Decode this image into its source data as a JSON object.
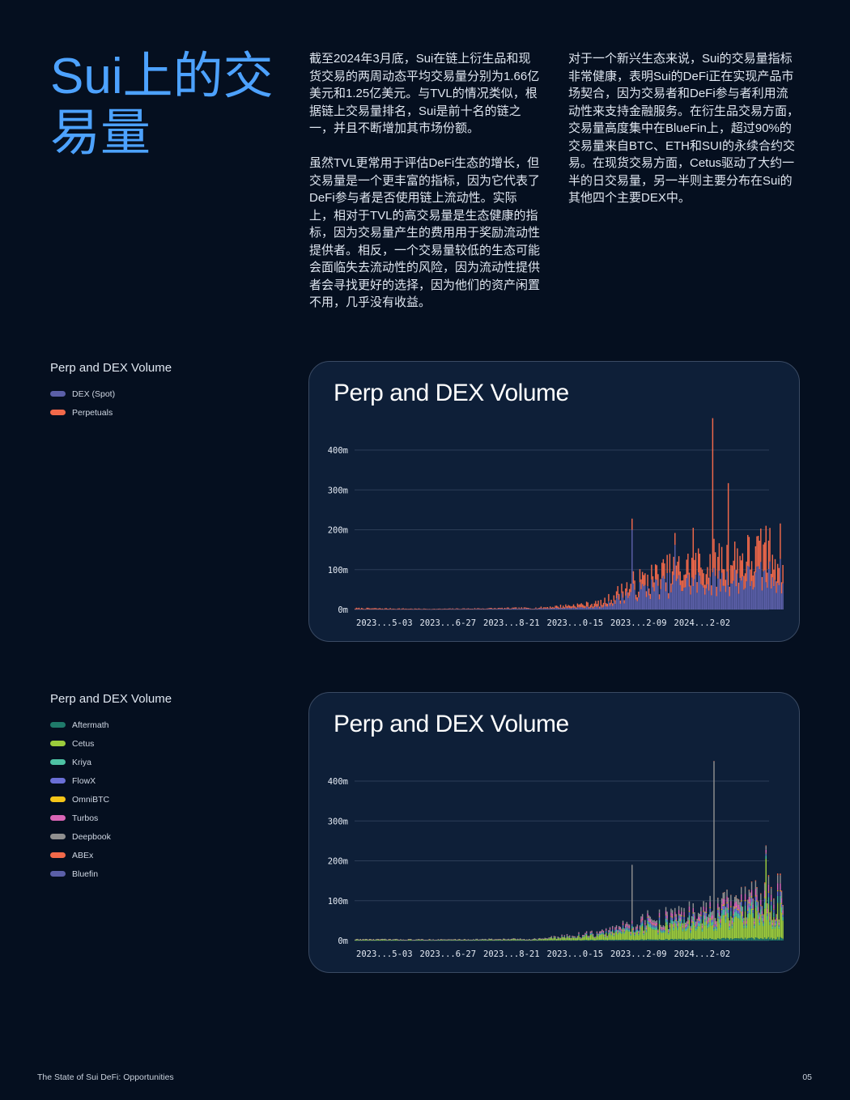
{
  "page": {
    "title": "Sui上的交易量",
    "paragraphs_col1": [
      "截至2024年3月底，Sui在链上衍生品和现货交易的两周动态平均交易量分别为1.66亿美元和1.25亿美元。与TVL的情况类似，根据链上交易量排名，Sui是前十名的链之一，并且不断增加其市场份额。",
      "虽然TVL更常用于评估DeFi生态的增长，但交易量是一个更丰富的指标，因为它代表了DeFi参与者是否使用链上流动性。实际上，相对于TVL的高交易量是生态健康的指标，因为交易量产生的费用用于奖励流动性提供者。相反，一个交易量较低的生态可能会面临失去流动性的风险，因为流动性提供者会寻找更好的选择，因为他们的资产闲置不用，几乎没有收益。"
    ],
    "paragraphs_col2": [
      "对于一个新兴生态来说，Sui的交易量指标非常健康，表明Sui的DeFi正在实现产品市场契合，因为交易者和DeFi参与者利用流动性来支持金融服务。在衍生品交易方面，交易量高度集中在BlueFin上，超过90%的交易量来自BTC、ETH和SUI的永续合约交易。在现货交易方面，Cetus驱动了大约一半的日交易量，另一半则主要分布在Sui的其他四个主要DEX中。"
    ],
    "footer_left": "The State of Sui DeFi: Opportunities",
    "page_number": "05"
  },
  "legends": [
    {
      "title": "Perp and DEX Volume",
      "items": [
        {
          "label": "DEX (Spot)",
          "color": "#5b5fa8"
        },
        {
          "label": "Perpetuals",
          "color": "#f2694a"
        }
      ]
    },
    {
      "title": "Perp and DEX Volume",
      "items": [
        {
          "label": "Aftermath",
          "color": "#1f7a6a"
        },
        {
          "label": "Cetus",
          "color": "#9ccc3c"
        },
        {
          "label": "Kriya",
          "color": "#4dc2a4"
        },
        {
          "label": "FlowX",
          "color": "#6a6fd6"
        },
        {
          "label": "OmniBTC",
          "color": "#f5c518"
        },
        {
          "label": "Turbos",
          "color": "#d965b6"
        },
        {
          "label": "Deepbook",
          "color": "#8f8f8f"
        },
        {
          "label": "ABEx",
          "color": "#f2694a"
        },
        {
          "label": "Bluefin",
          "color": "#5b5fa8"
        }
      ]
    }
  ],
  "chart_data": [
    {
      "type": "bar",
      "stacked": true,
      "title": "Perp and DEX Volume",
      "xlabel": "",
      "ylabel": "",
      "ylim": [
        0,
        480
      ],
      "yticks": [
        0,
        100,
        200,
        300,
        400
      ],
      "ytick_labels": [
        "0m",
        "100m",
        "200m",
        "300m",
        "400m"
      ],
      "xtick_labels": [
        "2023...5-03",
        "2023...6-27",
        "2023...8-21",
        "2023...0-15",
        "2023...2-09",
        "2024...2-02"
      ],
      "grid": true,
      "num_periods": 330,
      "spikes": [
        {
          "period": 213,
          "value": 200,
          "series": "DEX (Spot)"
        },
        {
          "period": 246,
          "value": 162,
          "series": "DEX (Spot)"
        },
        {
          "period": 260,
          "value": 205,
          "series": "Perpetuals"
        },
        {
          "period": 275,
          "value": 480,
          "series": "Perpetuals"
        },
        {
          "period": 287,
          "value": 317,
          "series": "Perpetuals"
        },
        {
          "period": 316,
          "value": 210,
          "series": "Perpetuals"
        }
      ],
      "series": [
        {
          "name": "DEX (Spot)",
          "color": "#5b5fa8",
          "segments": [
            [
              0,
              0.6
            ],
            [
              60,
              0.5
            ],
            [
              140,
              2
            ],
            [
              190,
              6
            ],
            [
              213,
              42
            ],
            [
              240,
              60
            ],
            [
              275,
              68
            ],
            [
              310,
              78
            ],
            [
              330,
              85
            ]
          ]
        },
        {
          "name": "Perpetuals",
          "color": "#f2694a",
          "segments": [
            [
              0,
              2.5
            ],
            [
              60,
              1
            ],
            [
              140,
              2
            ],
            [
              190,
              10
            ],
            [
              213,
              20
            ],
            [
              240,
              30
            ],
            [
              275,
              48
            ],
            [
              310,
              55
            ],
            [
              330,
              60
            ]
          ]
        }
      ]
    },
    {
      "type": "bar",
      "stacked": true,
      "title": "Perp and DEX Volume",
      "xlabel": "",
      "ylabel": "",
      "ylim": [
        0,
        480
      ],
      "yticks": [
        0,
        100,
        200,
        300,
        400
      ],
      "ytick_labels": [
        "0m",
        "100m",
        "200m",
        "300m",
        "400m"
      ],
      "xtick_labels": [
        "2023...5-03",
        "2023...6-27",
        "2023...8-21",
        "2023...0-15",
        "2023...2-09",
        "2024...2-02"
      ],
      "grid": true,
      "num_periods": 330,
      "spikes": [
        {
          "period": 213,
          "value": 190,
          "series": "Deepbook"
        },
        {
          "period": 276,
          "value": 450,
          "series": "Deepbook"
        },
        {
          "period": 316,
          "value": 205,
          "series": "Cetus"
        }
      ],
      "series": [
        {
          "name": "Aftermath",
          "color": "#1f7a6a",
          "segments": [
            [
              0,
              0.2
            ],
            [
              140,
              0.5
            ],
            [
              213,
              2
            ],
            [
              275,
              4
            ],
            [
              330,
              6
            ]
          ]
        },
        {
          "name": "Cetus",
          "color": "#9ccc3c",
          "segments": [
            [
              0,
              2
            ],
            [
              60,
              1
            ],
            [
              140,
              2
            ],
            [
              190,
              10
            ],
            [
              213,
              22
            ],
            [
              240,
              28
            ],
            [
              275,
              35
            ],
            [
              310,
              50
            ],
            [
              330,
              60
            ]
          ]
        },
        {
          "name": "Kriya",
          "color": "#4dc2a4",
          "segments": [
            [
              0,
              0.3
            ],
            [
              140,
              0.5
            ],
            [
              190,
              2
            ],
            [
              213,
              5
            ],
            [
              275,
              9
            ],
            [
              330,
              12
            ]
          ]
        },
        {
          "name": "FlowX",
          "color": "#6a6fd6",
          "segments": [
            [
              0,
              0.2
            ],
            [
              140,
              0.3
            ],
            [
              190,
              2
            ],
            [
              213,
              4
            ],
            [
              275,
              6
            ],
            [
              330,
              8
            ]
          ]
        },
        {
          "name": "OmniBTC",
          "color": "#f5c518",
          "segments": [
            [
              0,
              0.1
            ],
            [
              140,
              0.2
            ],
            [
              190,
              0.5
            ],
            [
              213,
              1
            ],
            [
              275,
              2
            ],
            [
              330,
              2
            ]
          ]
        },
        {
          "name": "Turbos",
          "color": "#d965b6",
          "segments": [
            [
              0,
              0.2
            ],
            [
              140,
              0.3
            ],
            [
              190,
              2
            ],
            [
              213,
              5
            ],
            [
              275,
              9
            ],
            [
              330,
              12
            ]
          ]
        },
        {
          "name": "Deepbook",
          "color": "#8f8f8f",
          "segments": [
            [
              0,
              0.1
            ],
            [
              140,
              0.2
            ],
            [
              190,
              1
            ],
            [
              213,
              4
            ],
            [
              275,
              10
            ],
            [
              330,
              14
            ]
          ]
        },
        {
          "name": "ABEx",
          "color": "#f2694a",
          "segments": [
            [
              0,
              0
            ],
            [
              275,
              0
            ],
            [
              300,
              1
            ],
            [
              330,
              3
            ]
          ]
        },
        {
          "name": "Bluefin",
          "color": "#5b5fa8",
          "segments": [
            [
              0,
              0
            ],
            [
              330,
              0
            ]
          ]
        }
      ]
    }
  ]
}
